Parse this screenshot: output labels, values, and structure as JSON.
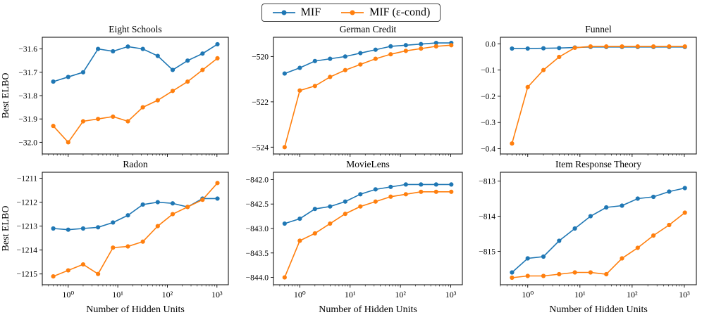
{
  "figure": {
    "xlabel": "Number of Hidden Units",
    "ylabel": "Best ELBO",
    "xtick_labels": [
      "10⁰",
      "10¹",
      "10²",
      "10³"
    ]
  },
  "legend": {
    "items": [
      {
        "label": "MIF",
        "color": "#1f77b4"
      },
      {
        "label": "MIF (ε-cond)",
        "color": "#ff7f0e"
      }
    ]
  },
  "chart_data": [
    {
      "type": "line",
      "title": "Eight Schools",
      "xscale": "log",
      "x": [
        0.5,
        1,
        2,
        4,
        8,
        16,
        32,
        64,
        128,
        256,
        512,
        1024
      ],
      "xlim": [
        0.3,
        1700
      ],
      "xticks": [
        1,
        10,
        100,
        1000
      ],
      "ylim": [
        -32.05,
        -31.55
      ],
      "yticks": [
        -31.6,
        -31.7,
        -31.8,
        -31.9,
        -32.0
      ],
      "ytick_labels": [
        "−31.6",
        "−31.7",
        "−31.8",
        "−31.9",
        "−32.0"
      ],
      "ylabel": "Best ELBO",
      "series": [
        {
          "name": "MIF",
          "color": "#1f77b4",
          "values": [
            -31.74,
            -31.72,
            -31.7,
            -31.6,
            -31.61,
            -31.59,
            -31.6,
            -31.63,
            -31.69,
            -31.65,
            -31.62,
            -31.58
          ]
        },
        {
          "name": "MIF (ε-cond)",
          "color": "#ff7f0e",
          "values": [
            -31.93,
            -32.0,
            -31.91,
            -31.9,
            -31.89,
            -31.91,
            -31.85,
            -31.82,
            -31.78,
            -31.74,
            -31.69,
            -31.64
          ]
        }
      ]
    },
    {
      "type": "line",
      "title": "German Credit",
      "xscale": "log",
      "x": [
        0.5,
        1,
        2,
        4,
        8,
        16,
        32,
        64,
        128,
        256,
        512,
        1024
      ],
      "xlim": [
        0.3,
        1700
      ],
      "xticks": [
        1,
        10,
        100,
        1000
      ],
      "ylim": [
        -524.3,
        -519.15
      ],
      "yticks": [
        -520,
        -522,
        -524
      ],
      "ytick_labels": [
        "−520",
        "−522",
        "−524"
      ],
      "series": [
        {
          "name": "MIF",
          "color": "#1f77b4",
          "values": [
            -520.75,
            -520.5,
            -520.2,
            -520.1,
            -520.0,
            -519.85,
            -519.7,
            -519.55,
            -519.5,
            -519.45,
            -519.4,
            -519.4
          ]
        },
        {
          "name": "MIF (ε-cond)",
          "color": "#ff7f0e",
          "values": [
            -524.0,
            -521.5,
            -521.3,
            -520.9,
            -520.6,
            -520.35,
            -520.1,
            -519.9,
            -519.75,
            -519.65,
            -519.55,
            -519.5
          ]
        }
      ]
    },
    {
      "type": "line",
      "title": "Funnel",
      "xscale": "log",
      "x": [
        0.5,
        1,
        2,
        4,
        8,
        16,
        32,
        64,
        128,
        256,
        512,
        1024
      ],
      "xlim": [
        0.3,
        1700
      ],
      "xticks": [
        1,
        10,
        100,
        1000
      ],
      "ylim": [
        -0.42,
        0.025
      ],
      "yticks": [
        0.0,
        -0.1,
        -0.2,
        -0.3,
        -0.4
      ],
      "ytick_labels": [
        "0.0",
        "−0.1",
        "−0.2",
        "−0.3",
        "−0.4"
      ],
      "series": [
        {
          "name": "MIF",
          "color": "#1f77b4",
          "values": [
            -0.018,
            -0.018,
            -0.017,
            -0.016,
            -0.014,
            -0.012,
            -0.012,
            -0.012,
            -0.012,
            -0.012,
            -0.012,
            -0.012
          ]
        },
        {
          "name": "MIF (ε-cond)",
          "color": "#ff7f0e",
          "values": [
            -0.38,
            -0.165,
            -0.1,
            -0.05,
            -0.015,
            -0.01,
            -0.01,
            -0.01,
            -0.01,
            -0.01,
            -0.01,
            -0.01
          ]
        }
      ]
    },
    {
      "type": "line",
      "title": "Radon",
      "xscale": "log",
      "x": [
        0.5,
        1,
        2,
        4,
        8,
        16,
        32,
        64,
        128,
        256,
        512,
        1024
      ],
      "xlim": [
        0.3,
        1700
      ],
      "xticks": [
        1,
        10,
        100,
        1000
      ],
      "ylim": [
        -1215.45,
        -1210.75
      ],
      "yticks": [
        -1211,
        -1212,
        -1213,
        -1214,
        -1215
      ],
      "ytick_labels": [
        "−1211",
        "−1212",
        "−1213",
        "−1214",
        "−1215"
      ],
      "ylabel": "Best ELBO",
      "xlabel": "Number of Hidden Units",
      "series": [
        {
          "name": "MIF",
          "color": "#1f77b4",
          "values": [
            -1213.1,
            -1213.15,
            -1213.1,
            -1213.05,
            -1212.85,
            -1212.55,
            -1212.1,
            -1212.0,
            -1212.05,
            -1212.2,
            -1211.85,
            -1211.85
          ]
        },
        {
          "name": "MIF (ε-cond)",
          "color": "#ff7f0e",
          "values": [
            -1215.1,
            -1214.85,
            -1214.6,
            -1215.0,
            -1213.9,
            -1213.85,
            -1213.65,
            -1213.0,
            -1212.5,
            -1212.2,
            -1211.9,
            -1211.2
          ]
        }
      ]
    },
    {
      "type": "line",
      "title": "MovieLens",
      "xscale": "log",
      "x": [
        0.5,
        1,
        2,
        4,
        8,
        16,
        32,
        64,
        128,
        256,
        512,
        1024
      ],
      "xlim": [
        0.3,
        1700
      ],
      "xticks": [
        1,
        10,
        100,
        1000
      ],
      "ylim": [
        -844.15,
        -841.85
      ],
      "yticks": [
        -842.0,
        -842.5,
        -843.0,
        -843.5,
        -844.0
      ],
      "ytick_labels": [
        "−842.0",
        "−842.5",
        "−843.0",
        "−843.5",
        "−844.0"
      ],
      "xlabel": "Number of Hidden Units",
      "series": [
        {
          "name": "MIF",
          "color": "#1f77b4",
          "values": [
            -842.9,
            -842.8,
            -842.6,
            -842.55,
            -842.45,
            -842.3,
            -842.2,
            -842.15,
            -842.1,
            -842.1,
            -842.1,
            -842.1
          ]
        },
        {
          "name": "MIF (ε-cond)",
          "color": "#ff7f0e",
          "values": [
            -844.0,
            -843.25,
            -843.1,
            -842.9,
            -842.7,
            -842.55,
            -842.45,
            -842.35,
            -842.3,
            -842.25,
            -842.25,
            -842.25
          ]
        }
      ]
    },
    {
      "type": "line",
      "title": "Item Response Theory",
      "xscale": "log",
      "x": [
        0.5,
        1,
        2,
        4,
        8,
        16,
        32,
        64,
        128,
        256,
        512,
        1024
      ],
      "xlim": [
        0.3,
        1700
      ],
      "xticks": [
        1,
        10,
        100,
        1000
      ],
      "ylim": [
        -815.95,
        -812.75
      ],
      "yticks": [
        -813,
        -814,
        -815
      ],
      "ytick_labels": [
        "−813",
        "−814",
        "−815"
      ],
      "xlabel": "Number of Hidden Units",
      "series": [
        {
          "name": "MIF",
          "color": "#1f77b4",
          "values": [
            -815.6,
            -815.2,
            -815.15,
            -814.7,
            -814.35,
            -814.0,
            -813.75,
            -813.7,
            -813.5,
            -813.45,
            -813.3,
            -813.2
          ]
        },
        {
          "name": "MIF (ε-cond)",
          "color": "#ff7f0e",
          "values": [
            -815.75,
            -815.7,
            -815.7,
            -815.65,
            -815.6,
            -815.6,
            -815.65,
            -815.2,
            -814.9,
            -814.55,
            -814.25,
            -813.9
          ]
        }
      ]
    }
  ]
}
